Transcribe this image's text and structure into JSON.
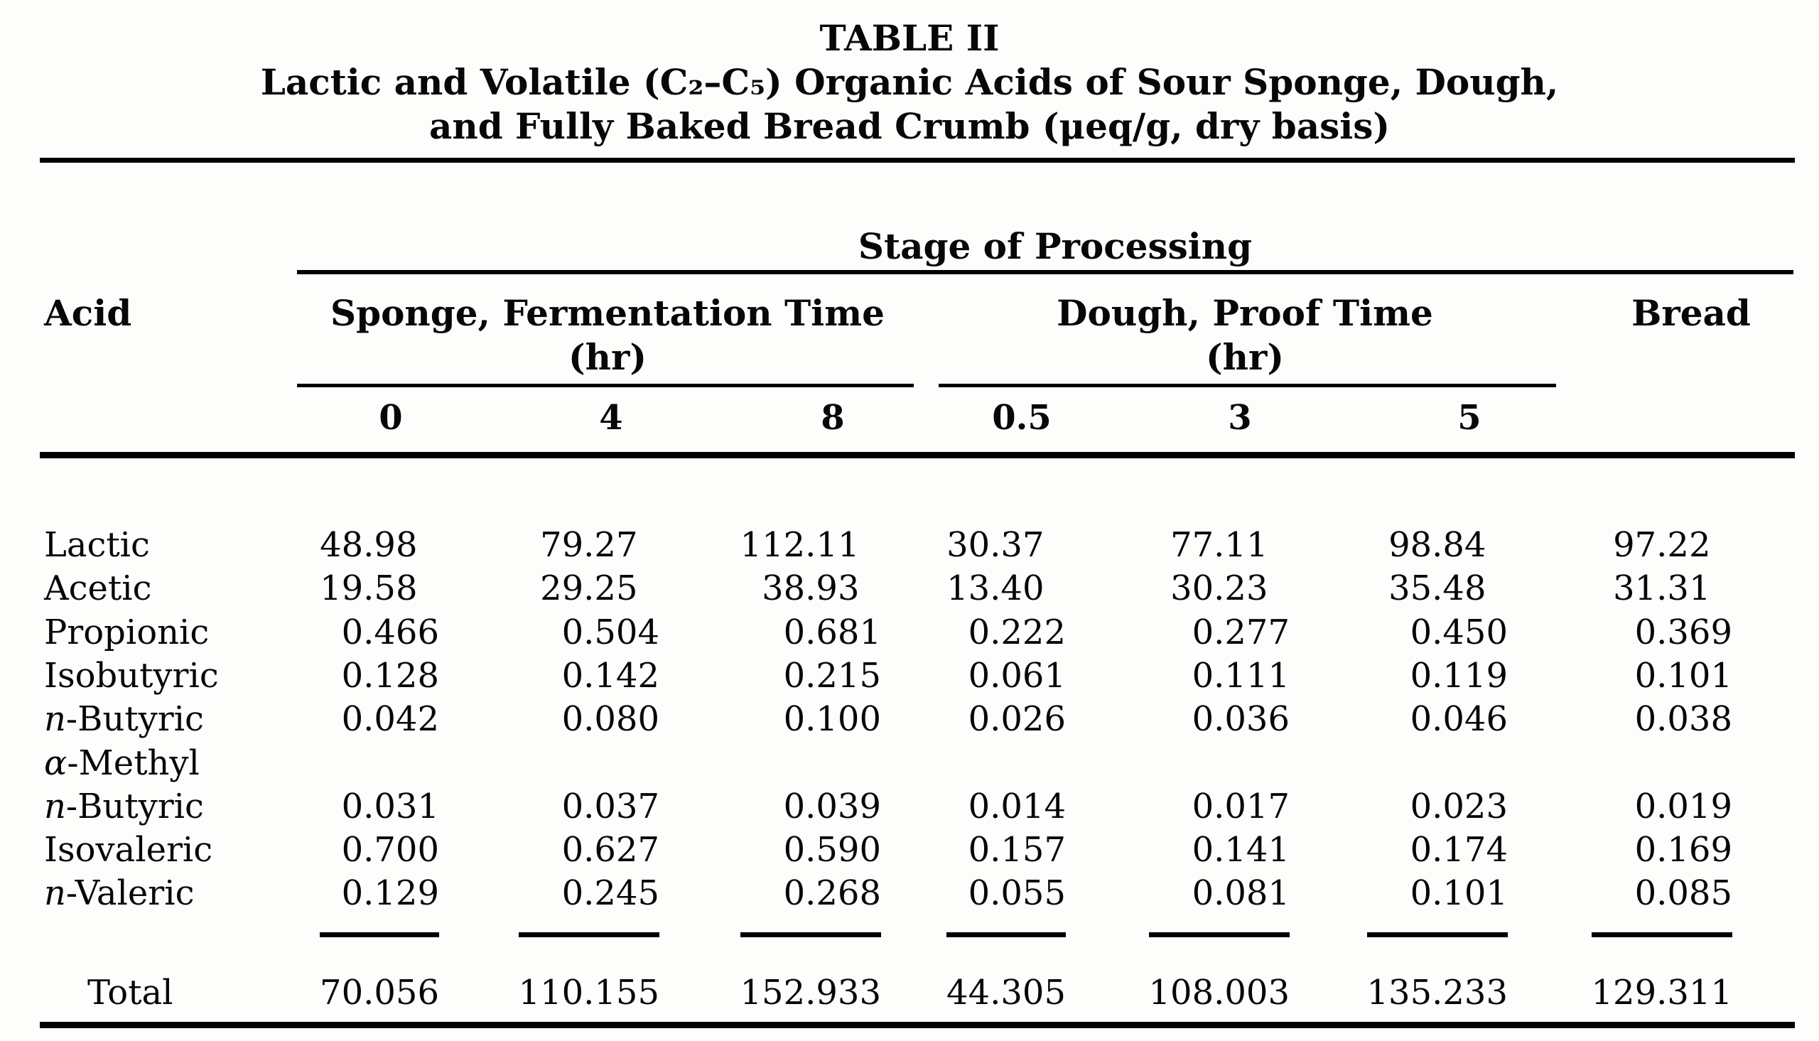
{
  "title": {
    "line1": "TABLE II",
    "line2": "Lactic and Volatile (C₂–C₅) Organic Acids of Sour Sponge, Dough,",
    "line3": "and Fully Baked Bread Crumb (μeq/g, dry basis)"
  },
  "table": {
    "stage_header": "Stage of Processing",
    "acid_header": "Acid",
    "col_groups": [
      {
        "label": "Sponge, Fermentation Time",
        "unit": "(hr)",
        "subcols": [
          "0",
          "4",
          "8"
        ]
      },
      {
        "label": "Dough, Proof Time",
        "unit": "(hr)",
        "subcols": [
          "0.5",
          "3",
          "5"
        ]
      },
      {
        "label": "Bread",
        "unit": "",
        "subcols": []
      }
    ],
    "rows": [
      {
        "label": "Lactic",
        "values": [
          "48.98",
          "79.27",
          "112.11",
          "30.37",
          "77.11",
          "98.84",
          "97.22"
        ]
      },
      {
        "label": "Acetic",
        "values": [
          "19.58",
          "29.25",
          "38.93",
          "13.40",
          "30.23",
          "35.48",
          "31.31"
        ]
      },
      {
        "label": "Propionic",
        "values": [
          "0.466",
          "0.504",
          "0.681",
          "0.222",
          "0.277",
          "0.450",
          "0.369"
        ]
      },
      {
        "label": "Isobutyric",
        "values": [
          "0.128",
          "0.142",
          "0.215",
          "0.061",
          "0.111",
          "0.119",
          "0.101"
        ]
      },
      {
        "label": "n-Butyric",
        "italic_prefix": "n",
        "values": [
          "0.042",
          "0.080",
          "0.100",
          "0.026",
          "0.036",
          "0.046",
          "0.038"
        ]
      },
      {
        "label": "α-Methyl",
        "italic_prefix": "α",
        "values": []
      },
      {
        "label": "n-Butyric",
        "italic_prefix": "n",
        "values": [
          "0.031",
          "0.037",
          "0.039",
          "0.014",
          "0.017",
          "0.023",
          "0.019"
        ]
      },
      {
        "label": "Isovaleric",
        "values": [
          "0.700",
          "0.627",
          "0.590",
          "0.157",
          "0.141",
          "0.174",
          "0.169"
        ]
      },
      {
        "label": "n-Valeric",
        "italic_prefix": "n",
        "values": [
          "0.129",
          "0.245",
          "0.268",
          "0.055",
          "0.081",
          "0.101",
          "0.085"
        ]
      }
    ],
    "total": {
      "label": "Total",
      "values": [
        "70.056",
        "110.155",
        "152.933",
        "44.305",
        "108.003",
        "135.233",
        "129.311"
      ]
    }
  }
}
